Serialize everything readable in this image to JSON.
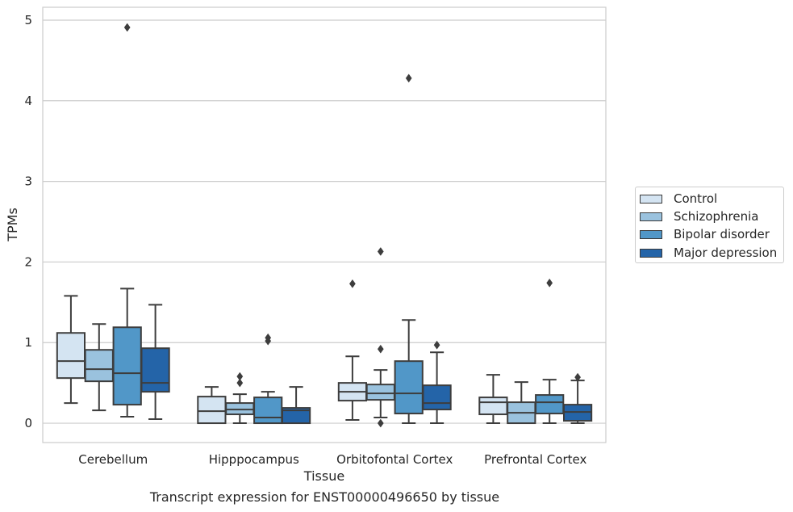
{
  "chart_data": {
    "type": "box",
    "title": "Transcript expression for ENST00000496650 by tissue",
    "xlabel": "Tissue",
    "ylabel": "TPMs",
    "ylim": [
      -0.24,
      5.16
    ],
    "yticks": [
      "0",
      "1",
      "2",
      "3",
      "4",
      "5"
    ],
    "grid": true,
    "legend_position": "right",
    "categories": [
      "Cerebellum",
      "Hipppocampus",
      "Orbitofontal Cortex",
      "Prefrontal Cortex"
    ],
    "series": [
      {
        "name": "Control",
        "color": "#d4e4f2",
        "boxes": [
          {
            "whisker_low": 0.25,
            "q1": 0.56,
            "median": 0.77,
            "q3": 1.12,
            "whisker_high": 1.58,
            "outliers": []
          },
          {
            "whisker_low": 0.0,
            "q1": 0.0,
            "median": 0.15,
            "q3": 0.33,
            "whisker_high": 0.45,
            "outliers": []
          },
          {
            "whisker_low": 0.04,
            "q1": 0.28,
            "median": 0.39,
            "q3": 0.5,
            "whisker_high": 0.83,
            "outliers": [
              1.73
            ]
          },
          {
            "whisker_low": 0.0,
            "q1": 0.11,
            "median": 0.26,
            "q3": 0.32,
            "whisker_high": 0.6,
            "outliers": []
          }
        ]
      },
      {
        "name": "Schizophrenia",
        "color": "#9ac2de",
        "boxes": [
          {
            "whisker_low": 0.16,
            "q1": 0.52,
            "median": 0.67,
            "q3": 0.91,
            "whisker_high": 1.23,
            "outliers": []
          },
          {
            "whisker_low": 0.0,
            "q1": 0.11,
            "median": 0.17,
            "q3": 0.25,
            "whisker_high": 0.36,
            "outliers": [
              0.5,
              0.58
            ]
          },
          {
            "whisker_low": 0.07,
            "q1": 0.29,
            "median": 0.37,
            "q3": 0.48,
            "whisker_high": 0.66,
            "outliers": [
              0.92,
              2.13,
              0.0
            ]
          },
          {
            "whisker_low": 0.0,
            "q1": 0.0,
            "median": 0.13,
            "q3": 0.26,
            "whisker_high": 0.51,
            "outliers": []
          }
        ]
      },
      {
        "name": "Bipolar disorder",
        "color": "#5197c8",
        "boxes": [
          {
            "whisker_low": 0.08,
            "q1": 0.23,
            "median": 0.62,
            "q3": 1.19,
            "whisker_high": 1.67,
            "outliers": [
              4.91
            ]
          },
          {
            "whisker_low": 0.0,
            "q1": 0.0,
            "median": 0.07,
            "q3": 0.32,
            "whisker_high": 0.39,
            "outliers": [
              1.02,
              1.06
            ]
          },
          {
            "whisker_low": 0.0,
            "q1": 0.12,
            "median": 0.37,
            "q3": 0.77,
            "whisker_high": 1.28,
            "outliers": [
              4.28
            ]
          },
          {
            "whisker_low": 0.0,
            "q1": 0.12,
            "median": 0.26,
            "q3": 0.35,
            "whisker_high": 0.54,
            "outliers": [
              1.74
            ]
          }
        ]
      },
      {
        "name": "Major depression",
        "color": "#2464a8",
        "boxes": [
          {
            "whisker_low": 0.05,
            "q1": 0.39,
            "median": 0.5,
            "q3": 0.93,
            "whisker_high": 1.47,
            "outliers": []
          },
          {
            "whisker_low": 0.0,
            "q1": 0.0,
            "median": 0.16,
            "q3": 0.19,
            "whisker_high": 0.45,
            "outliers": []
          },
          {
            "whisker_low": 0.0,
            "q1": 0.17,
            "median": 0.25,
            "q3": 0.47,
            "whisker_high": 0.88,
            "outliers": [
              0.97
            ]
          },
          {
            "whisker_low": 0.0,
            "q1": 0.03,
            "median": 0.14,
            "q3": 0.23,
            "whisker_high": 0.53,
            "outliers": [
              0.57
            ]
          }
        ]
      }
    ]
  }
}
